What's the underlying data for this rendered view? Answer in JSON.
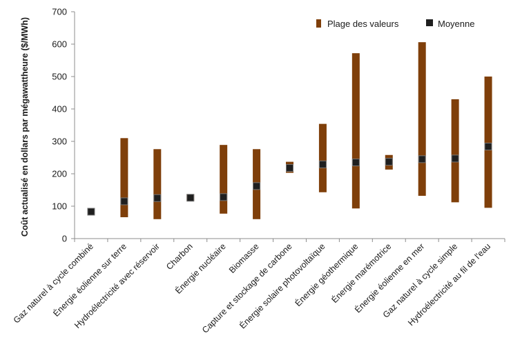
{
  "chart_data": {
    "type": "range-bar with mean markers",
    "title": "",
    "xlabel": "",
    "ylabel": "Coût actualisé en dollars par mégawattheure ($/MWh)",
    "ylim": [
      0,
      700
    ],
    "yticks": [
      0,
      100,
      200,
      300,
      400,
      500,
      600,
      700
    ],
    "grid": false,
    "legend_position": "top-right",
    "categories": [
      "Gaz naturel à cycle combiné",
      "Énergie éolienne sur terre",
      "Hydroélectricité avec réservoir",
      "Charbon",
      "Énergie nucléaire",
      "Biomasse",
      "Capture et stockage de carbone",
      "Énergie solaire photovoltaïque",
      "Énergie géothermique",
      "Énergie marémotrice",
      "Énergie éolienne en mer",
      "Gaz naturel à cycle simple",
      "Hydroélectricité au fil de l'eau"
    ],
    "series": [
      {
        "name": "Plage des valeurs",
        "color": "#7f3f0a",
        "low": [
          83,
          66,
          60,
          116,
          77,
          60,
          203,
          143,
          93,
          213,
          132,
          112,
          95
        ],
        "high": [
          83,
          310,
          276,
          137,
          289,
          276,
          237,
          354,
          572,
          258,
          606,
          430,
          500
        ]
      },
      {
        "name": "Moyenne",
        "color": "#1f1f1f",
        "values": [
          83,
          115,
          125,
          126,
          128,
          162,
          218,
          229,
          235,
          237,
          245,
          247,
          284
        ]
      }
    ]
  }
}
